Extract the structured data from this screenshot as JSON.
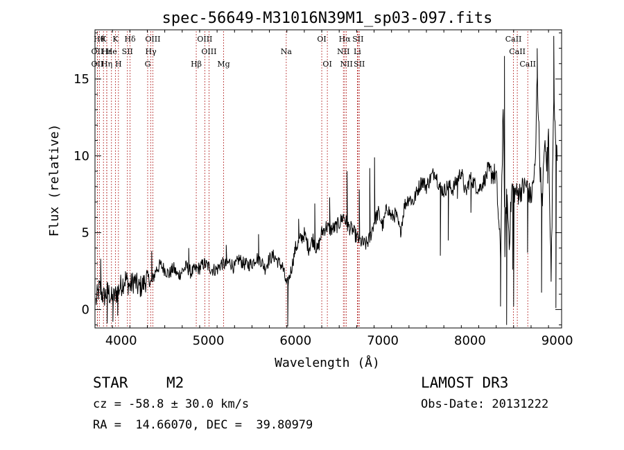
{
  "chart_data": {
    "type": "line",
    "title": "spec-56649-M31016N39M1_sp03-097.fits",
    "xlabel": "Wavelength (Å)",
    "ylabel": "Flux (relative)",
    "xlim": [
      3700,
      9050
    ],
    "ylim": [
      -1.2,
      18.2
    ],
    "x_ticks": [
      4000,
      5000,
      6000,
      7000,
      8000,
      9000
    ],
    "y_ticks": [
      0,
      5,
      10,
      15
    ],
    "grid": false,
    "series_color": "#000000",
    "line_marker_color": "#b22222",
    "spectrum": {
      "name": "",
      "x": [
        3710,
        3750,
        3800,
        3850,
        3900,
        3950,
        4000,
        4050,
        4100,
        4150,
        4200,
        4250,
        4300,
        4350,
        4400,
        4450,
        4500,
        4550,
        4600,
        4650,
        4700,
        4750,
        4800,
        4850,
        4900,
        4950,
        5000,
        5050,
        5100,
        5150,
        5200,
        5250,
        5300,
        5350,
        5400,
        5450,
        5500,
        5550,
        5600,
        5650,
        5700,
        5750,
        5800,
        5850,
        5900,
        5950,
        6000,
        6050,
        6100,
        6150,
        6200,
        6250,
        6300,
        6350,
        6400,
        6450,
        6500,
        6550,
        6600,
        6650,
        6700,
        6750,
        6800,
        6850,
        6900,
        6950,
        7000,
        7050,
        7100,
        7150,
        7200,
        7250,
        7300,
        7350,
        7400,
        7450,
        7500,
        7550,
        7600,
        7650,
        7700,
        7750,
        7800,
        7850,
        7900,
        7950,
        8000,
        8050,
        8100,
        8150,
        8200,
        8250,
        8300,
        8350,
        8380,
        8400,
        8420,
        8450,
        8480,
        8500,
        8550,
        8600,
        8650,
        8700,
        8750,
        8770,
        8800,
        8830,
        8850,
        8880,
        8900,
        8930,
        8960,
        9000
      ],
      "y": [
        0.5,
        1.4,
        0.8,
        1.2,
        0.6,
        1.1,
        1.6,
        2.0,
        1.5,
        1.9,
        1.4,
        1.6,
        2.1,
        1.7,
        2.6,
        2.9,
        2.6,
        2.3,
        2.7,
        2.2,
        2.5,
        2.8,
        2.4,
        2.6,
        2.7,
        3.0,
        2.8,
        2.6,
        2.6,
        3.0,
        2.9,
        3.1,
        2.7,
        3.3,
        3.0,
        2.9,
        3.0,
        3.4,
        3.2,
        2.7,
        3.3,
        3.5,
        3.1,
        2.8,
        1.5,
        2.6,
        4.0,
        4.5,
        4.9,
        4.0,
        4.6,
        3.8,
        5.0,
        5.4,
        5.2,
        5.3,
        5.6,
        6.1,
        5.4,
        5.2,
        4.7,
        4.4,
        4.2,
        4.6,
        5.7,
        6.3,
        5.4,
        6.7,
        6.0,
        6.2,
        5.0,
        6.8,
        7.3,
        7.0,
        7.8,
        8.4,
        8.0,
        8.6,
        9.0,
        8.0,
        7.7,
        8.1,
        7.8,
        8.4,
        9.0,
        7.5,
        8.6,
        8.2,
        7.8,
        8.3,
        8.8,
        8.9,
        8.7,
        3.5,
        13.5,
        4.1,
        7.8,
        4.5,
        8.0,
        7.7,
        7.5,
        7.9,
        8.1,
        7.2,
        9.4,
        15.5,
        9.6,
        6.5,
        10.8,
        9.5,
        11.5,
        2.0,
        14.3,
        9.3
      ],
      "spikes": [
        {
          "x": 4350,
          "y": 3.8
        },
        {
          "x": 4775,
          "y": 4.0
        },
        {
          "x": 5205,
          "y": 4.2
        },
        {
          "x": 5575,
          "y": 4.9
        },
        {
          "x": 5910,
          "y": -1.1
        },
        {
          "x": 6035,
          "y": 5.9
        },
        {
          "x": 6220,
          "y": 6.9
        },
        {
          "x": 6390,
          "y": 7.3
        },
        {
          "x": 6730,
          "y": 7.8
        },
        {
          "x": 6850,
          "y": 9.2
        },
        {
          "x": 6905,
          "y": 9.9
        },
        {
          "x": 6590,
          "y": 9.0
        },
        {
          "x": 7660,
          "y": 3.5
        },
        {
          "x": 7750,
          "y": 4.5
        },
        {
          "x": 7855,
          "y": 7.2
        },
        {
          "x": 8010,
          "y": 6.3
        },
        {
          "x": 8350,
          "y": 0.2
        },
        {
          "x": 8395,
          "y": 16.5
        },
        {
          "x": 8420,
          "y": -1.0
        },
        {
          "x": 8490,
          "y": 2.6
        },
        {
          "x": 8500,
          "y": 0.2
        },
        {
          "x": 8555,
          "y": 7.9
        },
        {
          "x": 8660,
          "y": 3.7
        },
        {
          "x": 8770,
          "y": 17.0
        },
        {
          "x": 8820,
          "y": 1.1
        },
        {
          "x": 8890,
          "y": 8.2
        },
        {
          "x": 8960,
          "y": 17.8
        },
        {
          "x": 8985,
          "y": 0.1
        },
        {
          "x": 3765,
          "y": 3.3
        },
        {
          "x": 3840,
          "y": -0.9
        },
        {
          "x": 3905,
          "y": -0.8
        },
        {
          "x": 3960,
          "y": -0.4
        }
      ]
    },
    "lines": [
      {
        "x": 3750,
        "row": 1,
        "label": "Hθ"
      },
      {
        "x": 3727,
        "row": 2,
        "label": "OII"
      },
      {
        "x": 3727,
        "row": 3,
        "label": "OII"
      },
      {
        "x": 3797,
        "row": 1,
        "label": "K"
      },
      {
        "x": 3835,
        "row": 2,
        "label": "Hε"
      },
      {
        "x": 3835,
        "row": 3,
        "label": "Hη"
      },
      {
        "x": 3889,
        "row": 2,
        "label": "He"
      },
      {
        "x": 3934,
        "row": 1,
        "label": "K"
      },
      {
        "x": 3969,
        "row": 3,
        "label": "H"
      },
      {
        "x": 4072,
        "row": 2,
        "label": "SII"
      },
      {
        "x": 4102,
        "row": 1,
        "label": "Hδ"
      },
      {
        "x": 4304,
        "row": 3,
        "label": "G"
      },
      {
        "x": 4341,
        "row": 2,
        "label": "Hγ"
      },
      {
        "x": 4363,
        "row": 1,
        "label": "OIII"
      },
      {
        "x": 4861,
        "row": 3,
        "label": "Hβ"
      },
      {
        "x": 4959,
        "row": 1,
        "label": "OIII"
      },
      {
        "x": 5007,
        "row": 2,
        "label": "OIII"
      },
      {
        "x": 5175,
        "row": 3,
        "label": "Mg"
      },
      {
        "x": 5893,
        "row": 2,
        "label": "Na"
      },
      {
        "x": 6300,
        "row": 1,
        "label": "OI"
      },
      {
        "x": 6364,
        "row": 3,
        "label": "OI"
      },
      {
        "x": 6548,
        "row": 2,
        "label": "NII"
      },
      {
        "x": 6563,
        "row": 1,
        "label": "Hα"
      },
      {
        "x": 6583,
        "row": 3,
        "label": "NII"
      },
      {
        "x": 6708,
        "row": 2,
        "label": "Li"
      },
      {
        "x": 6716,
        "row": 1,
        "label": "SII"
      },
      {
        "x": 6731,
        "row": 3,
        "label": "SII"
      },
      {
        "x": 8498,
        "row": 1,
        "label": "CaII"
      },
      {
        "x": 8542,
        "row": 2,
        "label": "CaII"
      },
      {
        "x": 8662,
        "row": 3,
        "label": "CaII"
      }
    ]
  },
  "info": {
    "object_class": "STAR",
    "subclass": "M2",
    "survey": "LAMOST DR3",
    "cz_line": "cz = -58.8 ± 30.0 km/s",
    "obs_date": "Obs-Date: 20131222",
    "coords": "RA =  14.66070, DEC =  39.80979"
  }
}
